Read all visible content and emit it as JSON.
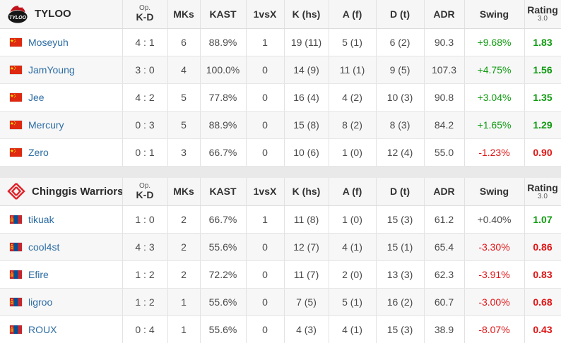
{
  "table": {
    "columns": {
      "opkd_top": "Op.",
      "opkd": "K-D",
      "mks": "MKs",
      "kast": "KAST",
      "one_vs_x": "1vsX",
      "k_hs": "K (hs)",
      "a_f": "A (f)",
      "d_t": "D (t)",
      "adr": "ADR",
      "swing": "Swing",
      "rating": "Rating",
      "rating_version": "3.0"
    },
    "colors": {
      "positive": "#109b10",
      "negative": "#e01515",
      "link": "#2d6da3"
    },
    "teams": [
      {
        "name": "TYLOO",
        "logo": "tyloo",
        "players": [
          {
            "flag": "cn",
            "name": "Moseyuh",
            "op_kd": "4 : 1",
            "mks": "6",
            "kast": "88.9%",
            "one_vs_x": "1",
            "k_hs": "19 (11)",
            "a_f": "5 (1)",
            "d_t": "6 (2)",
            "adr": "90.3",
            "swing": "+9.68%",
            "swing_trend": "positive",
            "rating": "1.83",
            "rating_trend": "positive"
          },
          {
            "flag": "cn",
            "name": "JamYoung",
            "op_kd": "3 : 0",
            "mks": "4",
            "kast": "100.0%",
            "one_vs_x": "0",
            "k_hs": "14 (9)",
            "a_f": "11 (1)",
            "d_t": "9 (5)",
            "adr": "107.3",
            "swing": "+4.75%",
            "swing_trend": "positive",
            "rating": "1.56",
            "rating_trend": "positive"
          },
          {
            "flag": "cn",
            "name": "Jee",
            "op_kd": "4 : 2",
            "mks": "5",
            "kast": "77.8%",
            "one_vs_x": "0",
            "k_hs": "16 (4)",
            "a_f": "4 (2)",
            "d_t": "10 (3)",
            "adr": "90.8",
            "swing": "+3.04%",
            "swing_trend": "positive",
            "rating": "1.35",
            "rating_trend": "positive"
          },
          {
            "flag": "cn",
            "name": "Mercury",
            "op_kd": "0 : 3",
            "mks": "5",
            "kast": "88.9%",
            "one_vs_x": "0",
            "k_hs": "15 (8)",
            "a_f": "8 (2)",
            "d_t": "8 (3)",
            "adr": "84.2",
            "swing": "+1.65%",
            "swing_trend": "positive",
            "rating": "1.29",
            "rating_trend": "positive"
          },
          {
            "flag": "cn",
            "name": "Zero",
            "op_kd": "0 : 1",
            "mks": "3",
            "kast": "66.7%",
            "one_vs_x": "0",
            "k_hs": "10 (6)",
            "a_f": "1 (0)",
            "d_t": "12 (4)",
            "adr": "55.0",
            "swing": "-1.23%",
            "swing_trend": "negative",
            "rating": "0.90",
            "rating_trend": "negative"
          }
        ]
      },
      {
        "name": "Chinggis Warriors",
        "logo": "chinggis-warriors",
        "players": [
          {
            "flag": "mn",
            "name": "tikuak",
            "op_kd": "1 : 0",
            "mks": "2",
            "kast": "66.7%",
            "one_vs_x": "1",
            "k_hs": "11 (8)",
            "a_f": "1 (0)",
            "d_t": "15 (3)",
            "adr": "61.2",
            "swing": "+0.40%",
            "swing_trend": "neutral",
            "rating": "1.07",
            "rating_trend": "positive"
          },
          {
            "flag": "mn",
            "name": "cool4st",
            "op_kd": "4 : 3",
            "mks": "2",
            "kast": "55.6%",
            "one_vs_x": "0",
            "k_hs": "12 (7)",
            "a_f": "4 (1)",
            "d_t": "15 (1)",
            "adr": "65.4",
            "swing": "-3.30%",
            "swing_trend": "negative",
            "rating": "0.86",
            "rating_trend": "negative"
          },
          {
            "flag": "mn",
            "name": "Efire",
            "op_kd": "1 : 2",
            "mks": "2",
            "kast": "72.2%",
            "one_vs_x": "0",
            "k_hs": "11 (7)",
            "a_f": "2 (0)",
            "d_t": "13 (3)",
            "adr": "62.3",
            "swing": "-3.91%",
            "swing_trend": "negative",
            "rating": "0.83",
            "rating_trend": "negative"
          },
          {
            "flag": "mn",
            "name": "ligroo",
            "op_kd": "1 : 2",
            "mks": "1",
            "kast": "55.6%",
            "one_vs_x": "0",
            "k_hs": "7 (5)",
            "a_f": "5 (1)",
            "d_t": "16 (2)",
            "adr": "60.7",
            "swing": "-3.00%",
            "swing_trend": "negative",
            "rating": "0.68",
            "rating_trend": "negative"
          },
          {
            "flag": "mn",
            "name": "ROUX",
            "op_kd": "0 : 4",
            "mks": "1",
            "kast": "55.6%",
            "one_vs_x": "0",
            "k_hs": "4 (3)",
            "a_f": "4 (1)",
            "d_t": "15 (3)",
            "adr": "38.9",
            "swing": "-8.07%",
            "swing_trend": "negative",
            "rating": "0.43",
            "rating_trend": "negative"
          }
        ]
      }
    ]
  }
}
